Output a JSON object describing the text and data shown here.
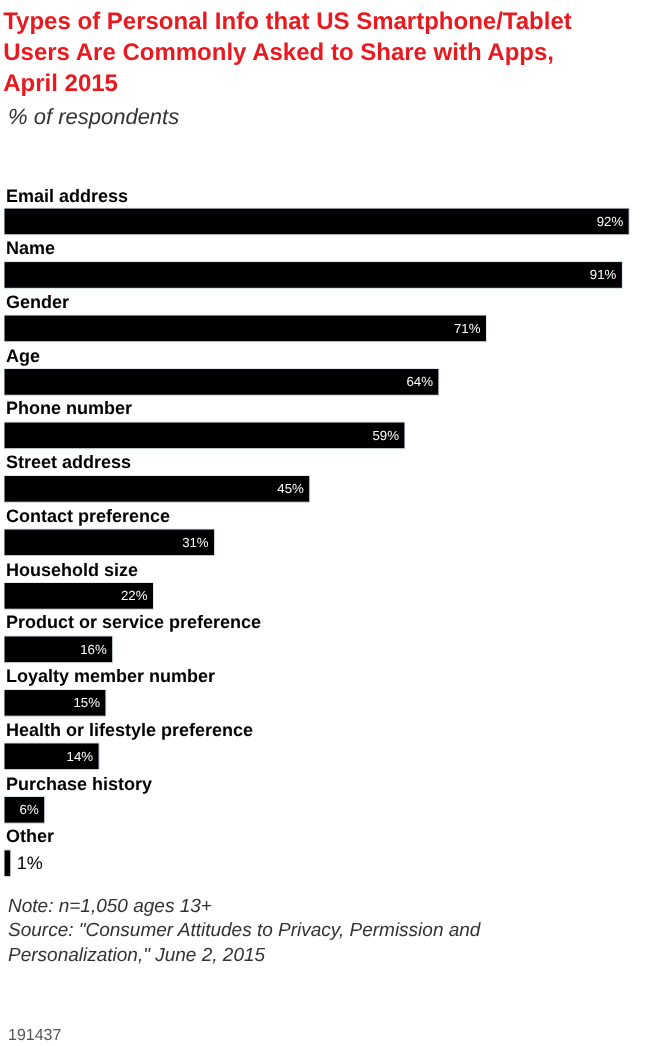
{
  "chart_data": {
    "type": "bar",
    "orientation": "horizontal",
    "title": "Types of Personal Info that US Smartphone/Tablet Users Are Commonly Asked to Share with Apps, April 2015",
    "subtitle": "% of respondents",
    "categories": [
      "Email address",
      "Name",
      "Gender",
      "Age",
      "Phone number",
      "Street address",
      "Contact preference",
      "Household size",
      "Product or service preference",
      "Loyalty member number",
      "Health or lifestyle preference",
      "Purchase history",
      "Other"
    ],
    "values": [
      92,
      91,
      71,
      64,
      59,
      45,
      31,
      22,
      16,
      15,
      14,
      6,
      1
    ],
    "value_labels": [
      "92%",
      "91%",
      "71%",
      "64%",
      "59%",
      "45%",
      "31%",
      "22%",
      "16%",
      "15%",
      "14%",
      "6%",
      "1%"
    ],
    "color": "#000000",
    "xlim": [
      0,
      93
    ],
    "tick_labels": false,
    "legend": false,
    "annotations": [
      "Note: n=1,050 ages 13+",
      "Source: \"Consumer Attitudes to Privacy, Permission and Personalization,\" June 2, 2015",
      "191437"
    ]
  }
}
